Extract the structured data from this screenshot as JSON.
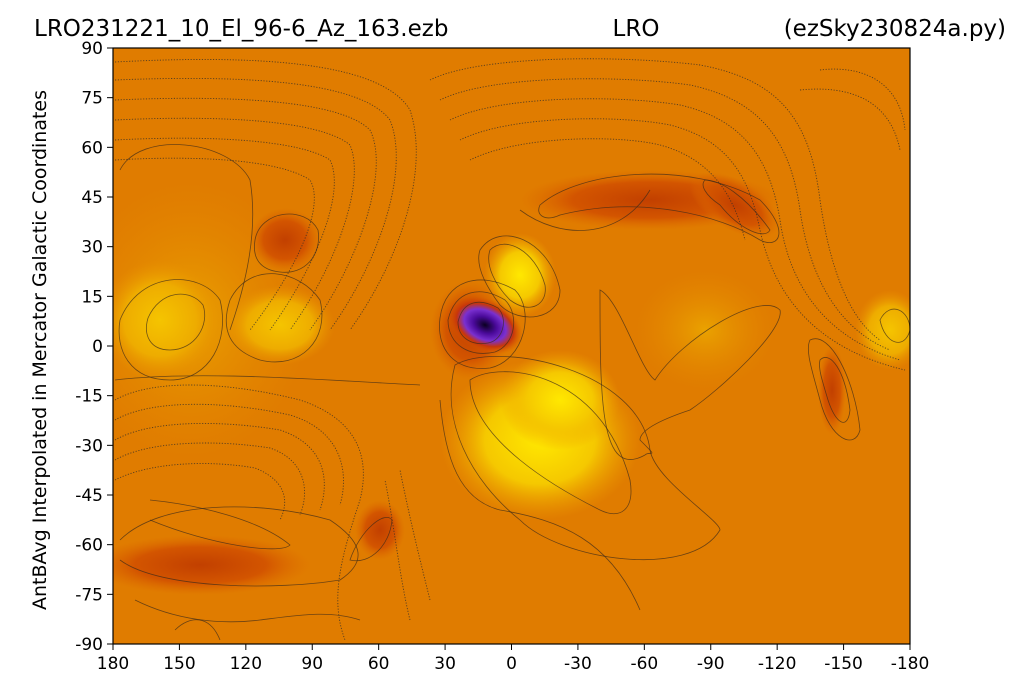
{
  "chart_data": {
    "type": "heatmap",
    "projection": "mercator",
    "title_left": "LRO231221_10_El_96-6_Az_163.ezb",
    "title_center": "LRO",
    "title_right": "(ezSky230824a.py)",
    "ylabel": "AntBAvg Interpolated in Mercator Galactic Coordinates",
    "xlabel": "",
    "x_ticks": [
      "180",
      "150",
      "120",
      "90",
      "60",
      "30",
      "0",
      "-30",
      "-60",
      "-90",
      "-120",
      "-150",
      "-180"
    ],
    "x_tick_values": [
      180,
      150,
      120,
      90,
      60,
      30,
      0,
      -30,
      -60,
      -90,
      -120,
      -150,
      -180
    ],
    "y_ticks": [
      "90",
      "75",
      "60",
      "45",
      "30",
      "15",
      "0",
      "-15",
      "-30",
      "-45",
      "-60",
      "-75",
      "-90"
    ],
    "y_tick_values": [
      90,
      75,
      60,
      45,
      30,
      15,
      0,
      -15,
      -30,
      -45,
      -60,
      -75,
      -90
    ],
    "xlim": [
      180,
      -180
    ],
    "ylim": [
      -90,
      90
    ],
    "colormap": "gnuplot",
    "colors": {
      "background": "#e07a00",
      "low": "#d95b00",
      "high": "#f2c000",
      "peak": "#2a0078"
    },
    "features": [
      {
        "name": "strong peak",
        "lon": 12,
        "lat": 6
      },
      {
        "name": "bright lobe",
        "lon": 6,
        "lat": 22
      },
      {
        "name": "bright region",
        "lon": -10,
        "lat": -20
      },
      {
        "name": "warm region",
        "lon": 150,
        "lat": 5
      },
      {
        "name": "warm region",
        "lon": 97,
        "lat": 5
      },
      {
        "name": "dark spot",
        "lon": 102,
        "lat": 33
      },
      {
        "name": "dark ridge",
        "lon": -100,
        "lat": 45
      },
      {
        "name": "dark streak",
        "lon": -145,
        "lat": -15
      }
    ],
    "grid": false,
    "legend": "none"
  }
}
